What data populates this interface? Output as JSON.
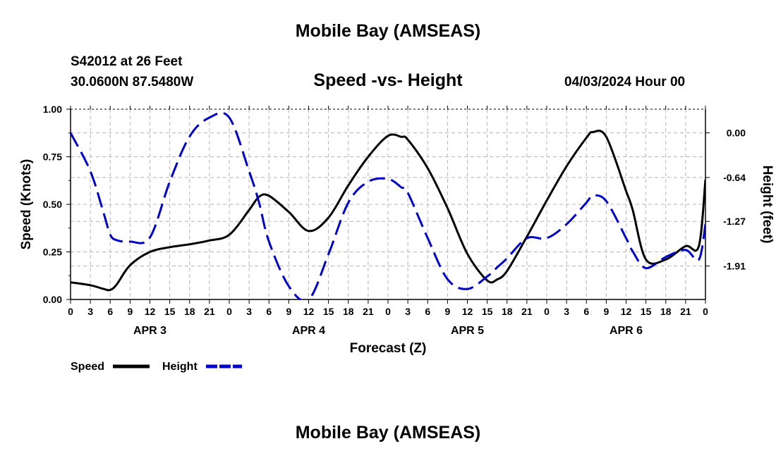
{
  "header": {
    "title": "Mobile Bay (AMSEAS)",
    "station": "S42012 at 26 Feet",
    "coordinates": "30.0600N  87.5480W",
    "subtitle": "Speed -vs- Height",
    "datetime": "04/03/2024 Hour 00"
  },
  "footer": {
    "title": "Mobile Bay (AMSEAS)"
  },
  "chart_data": {
    "type": "line",
    "title": "Speed -vs- Height",
    "xlabel": "Forecast (Z)",
    "ylabel": "Speed (Knots)",
    "y2label": "Height (feet)",
    "grid": true,
    "x_range_hours": [
      0,
      96
    ],
    "x_tick_labels": [
      "0",
      "3",
      "6",
      "9",
      "12",
      "15",
      "18",
      "21",
      "0",
      "3",
      "6",
      "9",
      "12",
      "15",
      "18",
      "21",
      "0",
      "3",
      "6",
      "9",
      "12",
      "15",
      "18",
      "21",
      "0",
      "3",
      "6",
      "9",
      "12",
      "15",
      "18",
      "21",
      "0"
    ],
    "day_labels": [
      {
        "label": "APR 3",
        "hour": 12
      },
      {
        "label": "APR 4",
        "hour": 36
      },
      {
        "label": "APR 5",
        "hour": 60
      },
      {
        "label": "APR 6",
        "hour": 84
      }
    ],
    "y_left": {
      "range": [
        0,
        1
      ],
      "ticks": [
        0,
        0.25,
        0.5,
        0.75,
        1
      ],
      "tick_labels": [
        "0.00",
        "0.25",
        "0.50",
        "0.75",
        "1.00"
      ]
    },
    "y_right": {
      "range": [
        -2.39,
        0.34
      ],
      "ticks": [
        0,
        -0.64,
        -1.27,
        -1.91
      ],
      "tick_labels": [
        "0.00",
        "-0.64",
        "-1.27",
        "-1.91"
      ]
    },
    "series": [
      {
        "name": "Speed",
        "axis": "left",
        "color": "#000000",
        "style": "solid",
        "x": [
          0,
          3,
          5,
          6,
          7,
          9,
          12,
          15,
          18,
          21,
          24,
          27,
          28.5,
          30,
          33,
          36,
          39,
          42,
          45,
          48,
          50,
          51,
          54,
          57,
          60,
          63,
          64.5,
          66,
          69,
          72,
          75,
          78,
          79,
          81,
          84,
          85,
          87,
          90,
          93,
          95,
          96
        ],
        "y": [
          0.09,
          0.075,
          0.055,
          0.05,
          0.08,
          0.18,
          0.25,
          0.275,
          0.29,
          0.31,
          0.34,
          0.47,
          0.54,
          0.545,
          0.46,
          0.36,
          0.43,
          0.6,
          0.75,
          0.86,
          0.855,
          0.84,
          0.69,
          0.48,
          0.24,
          0.1,
          0.105,
          0.15,
          0.33,
          0.52,
          0.7,
          0.85,
          0.88,
          0.855,
          0.57,
          0.47,
          0.21,
          0.21,
          0.28,
          0.28,
          0.63
        ]
      },
      {
        "name": "Height",
        "axis": "right",
        "color": "#0000cc",
        "style": "dashed",
        "x": [
          0,
          3,
          5,
          6,
          7,
          9,
          12,
          15,
          18,
          21,
          24,
          27,
          28.5,
          30,
          33,
          36,
          39,
          42,
          45,
          48,
          50,
          51,
          54,
          57,
          60,
          63,
          64.5,
          66,
          69,
          72,
          75,
          78,
          79,
          81,
          84,
          85,
          87,
          90,
          93,
          95,
          96
        ],
        "y": [
          0.0,
          -0.55,
          -1.15,
          -1.46,
          -1.54,
          -1.56,
          -1.5,
          -0.7,
          -0.05,
          0.22,
          0.22,
          -0.55,
          -1.0,
          -1.56,
          -2.2,
          -2.39,
          -1.74,
          -1.0,
          -0.7,
          -0.66,
          -0.78,
          -0.86,
          -1.51,
          -2.1,
          -2.24,
          -2.06,
          -1.93,
          -1.8,
          -1.51,
          -1.51,
          -1.31,
          -1.0,
          -0.9,
          -0.98,
          -1.51,
          -1.7,
          -1.94,
          -1.78,
          -1.68,
          -1.82,
          -1.31
        ]
      }
    ],
    "legend": {
      "placement": "bottom-left",
      "entries": [
        "Speed",
        "Height"
      ]
    }
  }
}
